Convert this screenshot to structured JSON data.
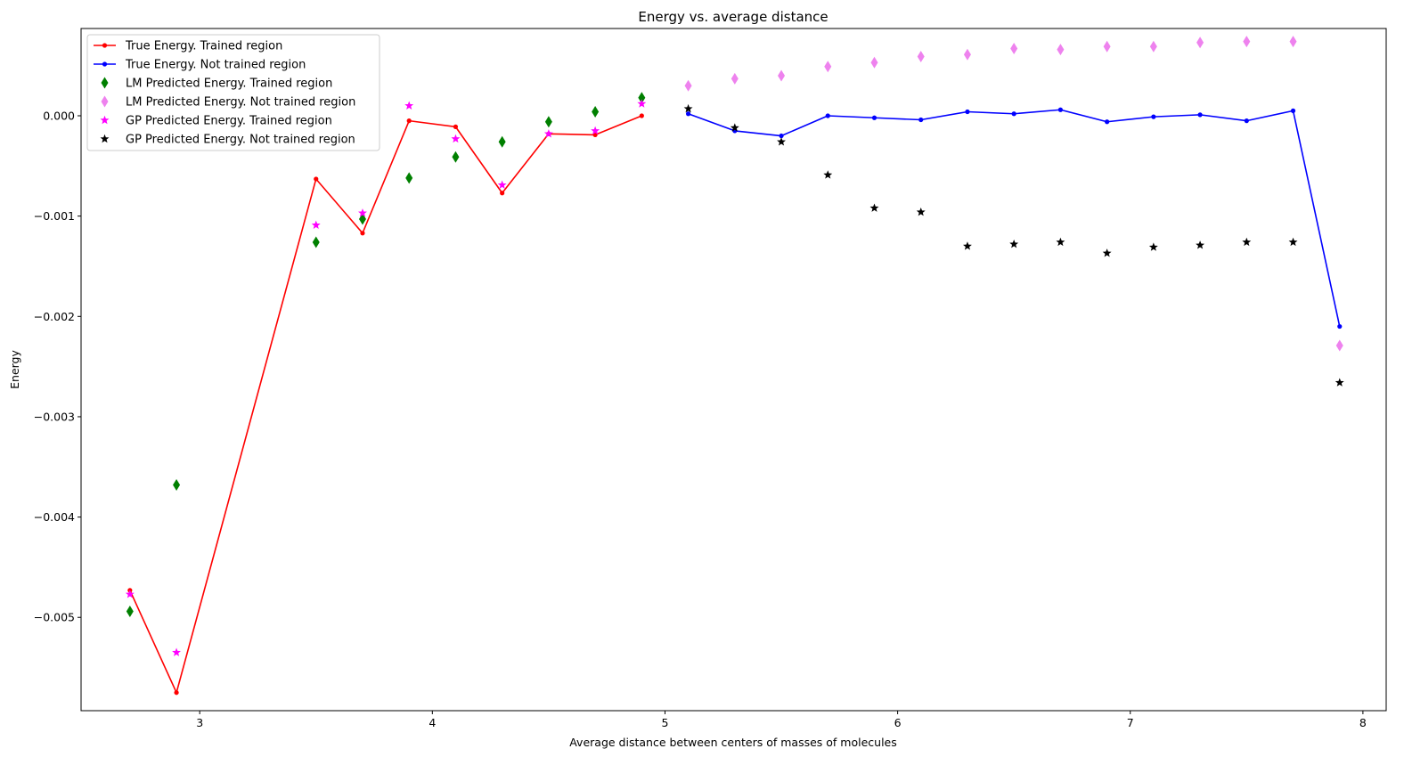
{
  "chart_data": {
    "type": "line",
    "title": "Energy vs. average distance",
    "xlabel": "Average distance between centers of masses of molecules",
    "ylabel": "Energy",
    "xlim": [
      2.49,
      8.1
    ],
    "ylim": [
      -0.00593,
      0.00087
    ],
    "xticks": [
      3,
      4,
      5,
      6,
      7,
      8
    ],
    "xtick_labels": [
      "3",
      "4",
      "5",
      "6",
      "7",
      "8"
    ],
    "yticks": [
      0.0,
      -0.001,
      -0.002,
      -0.003,
      -0.004,
      -0.005
    ],
    "ytick_labels": [
      "0.000",
      "−0.001",
      "−0.002",
      "−0.003",
      "−0.004",
      "−0.005"
    ],
    "grid": false,
    "legend_position": "upper-left",
    "series": [
      {
        "name": "True Energy. Trained region",
        "style": "line-dot",
        "color": "#ff0000",
        "x": [
          2.7,
          2.9,
          3.5,
          3.7,
          3.9,
          4.1,
          4.3,
          4.5,
          4.7,
          4.9
        ],
        "y": [
          -0.00473,
          -0.00575,
          -0.00063,
          -0.00117,
          -5e-05,
          -0.00011,
          -0.00077,
          -0.00018,
          -0.00019,
          0.0
        ]
      },
      {
        "name": "True Energy. Not trained region",
        "style": "line-dot",
        "color": "#0000ff",
        "x": [
          5.1,
          5.3,
          5.5,
          5.7,
          5.9,
          6.1,
          6.3,
          6.5,
          6.7,
          6.9,
          7.1,
          7.3,
          7.5,
          7.7,
          7.9
        ],
        "y": [
          2e-05,
          -0.00015,
          -0.0002,
          0.0,
          -2e-05,
          -4e-05,
          4e-05,
          2e-05,
          6e-05,
          -6e-05,
          -1e-05,
          1e-05,
          -5e-05,
          5e-05,
          -0.0021
        ]
      },
      {
        "name": "LM Predicted Energy. Trained region",
        "style": "thin-diamond",
        "color": "#008000",
        "x": [
          2.7,
          2.9,
          3.5,
          3.7,
          3.9,
          4.1,
          4.3,
          4.5,
          4.7,
          4.9
        ],
        "y": [
          -0.00494,
          -0.00368,
          -0.00126,
          -0.00103,
          -0.00062,
          -0.00041,
          -0.00026,
          -6e-05,
          4e-05,
          0.00018
        ]
      },
      {
        "name": "LM Predicted Energy. Not trained region",
        "style": "thin-diamond",
        "color": "#ee82ee",
        "x": [
          5.1,
          5.3,
          5.5,
          5.7,
          5.9,
          6.1,
          6.3,
          6.5,
          6.7,
          6.9,
          7.1,
          7.3,
          7.5,
          7.7,
          7.9
        ],
        "y": [
          0.0003,
          0.00037,
          0.0004,
          0.00049,
          0.00053,
          0.00059,
          0.00061,
          0.00067,
          0.00066,
          0.00069,
          0.00069,
          0.00073,
          0.00074,
          0.00074,
          -0.00229
        ]
      },
      {
        "name": "GP Predicted Energy. Trained region",
        "style": "star",
        "color": "#ff00ff",
        "x": [
          2.7,
          2.9,
          3.5,
          3.7,
          3.9,
          4.1,
          4.3,
          4.5,
          4.7,
          4.9
        ],
        "y": [
          -0.00477,
          -0.00535,
          -0.00109,
          -0.00097,
          0.0001,
          -0.00023,
          -0.00069,
          -0.00018,
          -0.00015,
          0.00012
        ]
      },
      {
        "name": "GP Predicted Energy. Not trained region",
        "style": "star",
        "color": "#000000",
        "x": [
          5.1,
          5.3,
          5.5,
          5.7,
          5.9,
          6.1,
          6.3,
          6.5,
          6.7,
          6.9,
          7.1,
          7.3,
          7.5,
          7.7,
          7.9
        ],
        "y": [
          7e-05,
          -0.00012,
          -0.00026,
          -0.00059,
          -0.00092,
          -0.00096,
          -0.0013,
          -0.00128,
          -0.00126,
          -0.00137,
          -0.00131,
          -0.00129,
          -0.00126,
          -0.00126,
          -0.00266
        ]
      }
    ]
  }
}
